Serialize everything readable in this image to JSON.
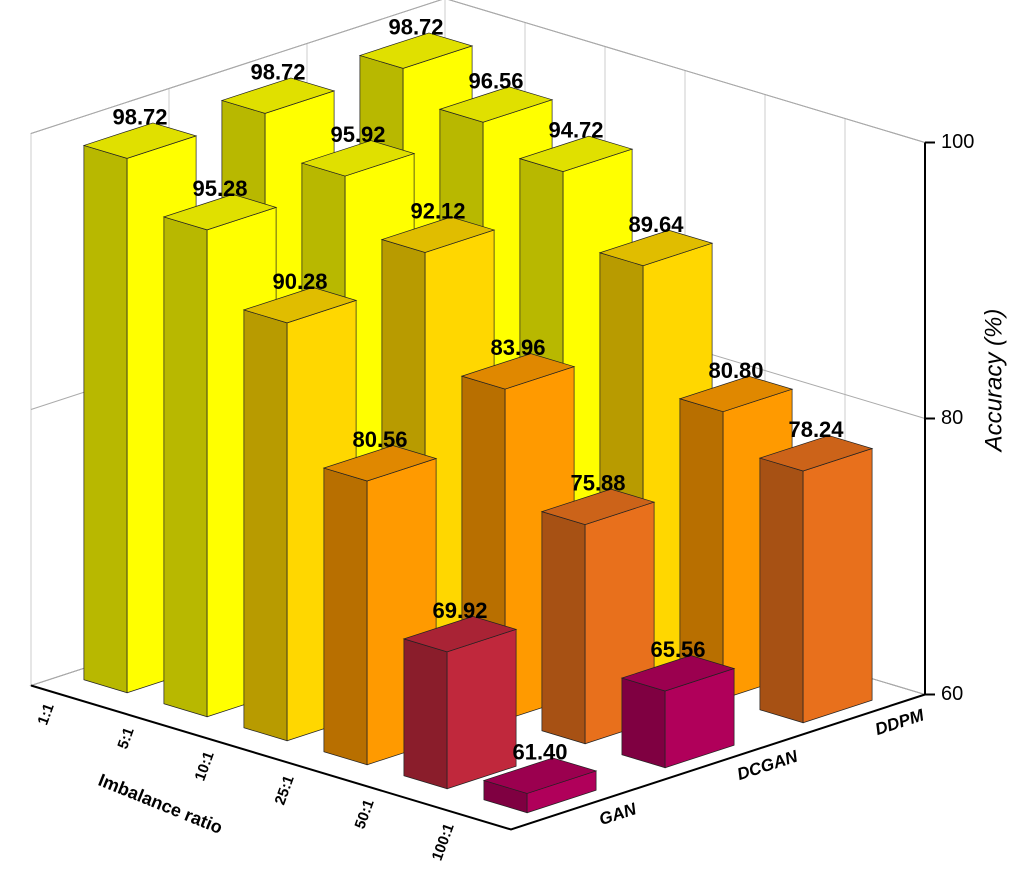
{
  "chart_data": {
    "type": "bar3d",
    "xlabel": "Imbalance ratio",
    "ylabel": "Accuracy (%)",
    "categories": [
      "1:1",
      "5:1",
      "10:1",
      "25:1",
      "50:1",
      "100:1"
    ],
    "series": [
      {
        "name": "GAN",
        "values": [
          98.72,
          95.28,
          90.28,
          80.56,
          69.92,
          61.4
        ],
        "value_labels": [
          "98.72",
          "95.28",
          "90.28",
          "80.56",
          "69.92",
          "61.40"
        ],
        "colors": [
          "#ffff00",
          "#ffff00",
          "#ffd700",
          "#ff9a00",
          "#c0283c",
          "#b0005a"
        ]
      },
      {
        "name": "DCGAN",
        "values": [
          98.72,
          95.92,
          92.12,
          83.96,
          75.88,
          65.56
        ],
        "value_labels": [
          "98.72",
          "95.92",
          "92.12",
          "83.96",
          "75.88",
          "65.56"
        ],
        "colors": [
          "#ffff00",
          "#ffff00",
          "#ffd700",
          "#ff9a00",
          "#e8701c",
          "#b0005a"
        ]
      },
      {
        "name": "DDPM",
        "values": [
          98.72,
          96.56,
          94.72,
          89.64,
          80.8,
          78.24
        ],
        "value_labels": [
          "98.72",
          "96.56",
          "94.72",
          "89.64",
          "80.80",
          "78.24"
        ],
        "colors": [
          "#ffff00",
          "#ffff00",
          "#ffff00",
          "#ffd700",
          "#ff9a00",
          "#e8701c"
        ]
      }
    ],
    "ylim": [
      60,
      100
    ],
    "yticks": [
      60,
      80,
      100
    ],
    "grid": true
  }
}
